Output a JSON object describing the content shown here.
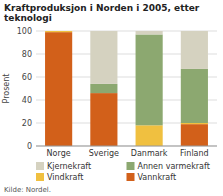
{
  "chart_data": {
    "type": "bar",
    "stacked": true,
    "title": "Kraftproduksjon i Norden i 2005, etter teknologi",
    "ylabel": "Prosent",
    "source": "Kilde: Nordel.",
    "categories": [
      "Norge",
      "Sverige",
      "Danmark",
      "Finland"
    ],
    "series": [
      {
        "name": "Vannkraft",
        "color": "#d2601a",
        "values": [
          99,
          46,
          0,
          19
        ]
      },
      {
        "name": "Vindkraft",
        "color": "#f0c040",
        "values": [
          1,
          0,
          18,
          1
        ]
      },
      {
        "name": "Annen varmekraft",
        "color": "#8ca870",
        "values": [
          0,
          8,
          79,
          47
        ]
      },
      {
        "name": "Kjernekraft",
        "color": "#d5d2c0",
        "values": [
          0,
          46,
          3,
          33
        ]
      }
    ],
    "ylim": [
      0,
      100
    ],
    "yticks": [
      0,
      20,
      40,
      60,
      80,
      100
    ],
    "grid": true,
    "legend": "bottom"
  }
}
